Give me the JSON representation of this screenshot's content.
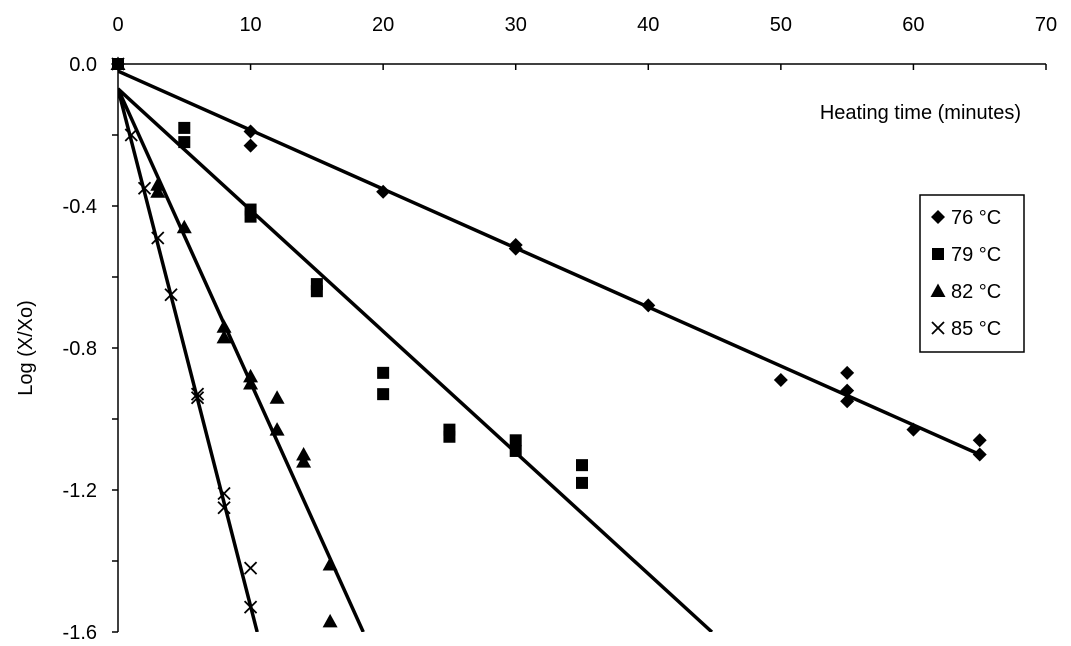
{
  "chart_data": {
    "type": "scatter",
    "xlabel": "Heating time (minutes)",
    "ylabel": "Log (X/Xo)",
    "xlim": [
      0,
      70
    ],
    "ylim": [
      -1.6,
      0.0
    ],
    "x_ticks": [
      "0",
      "10",
      "20",
      "30",
      "40",
      "50",
      "60",
      "70"
    ],
    "y_ticks": [
      "0.0",
      "-0.4",
      "-0.8",
      "-1.2",
      "-1.6"
    ],
    "x_axis_position": "top",
    "grid": false,
    "legend_position": "right",
    "series": [
      {
        "name": "76 °C",
        "marker": "diamond",
        "points": [
          [
            0,
            0.0
          ],
          [
            10,
            -0.19
          ],
          [
            10,
            -0.23
          ],
          [
            20,
            -0.36
          ],
          [
            30,
            -0.51
          ],
          [
            30,
            -0.52
          ],
          [
            40,
            -0.68
          ],
          [
            50,
            -0.89
          ],
          [
            55,
            -0.87
          ],
          [
            55,
            -0.92
          ],
          [
            55,
            -0.95
          ],
          [
            60,
            -1.03
          ],
          [
            65,
            -1.06
          ],
          [
            65,
            -1.1
          ]
        ],
        "fit": [
          [
            0,
            -0.02
          ],
          [
            65,
            -1.1
          ]
        ]
      },
      {
        "name": "79 °C",
        "marker": "square",
        "points": [
          [
            0,
            0.0
          ],
          [
            5,
            -0.18
          ],
          [
            5,
            -0.22
          ],
          [
            10,
            -0.41
          ],
          [
            10,
            -0.43
          ],
          [
            15,
            -0.62
          ],
          [
            15,
            -0.64
          ],
          [
            20,
            -0.87
          ],
          [
            20,
            -0.93
          ],
          [
            25,
            -1.03
          ],
          [
            25,
            -1.05
          ],
          [
            30,
            -1.06
          ],
          [
            30,
            -1.09
          ],
          [
            35,
            -1.13
          ],
          [
            35,
            -1.18
          ]
        ],
        "fit": [
          [
            0,
            -0.07
          ],
          [
            44.8,
            -1.6
          ]
        ]
      },
      {
        "name": "82 °C",
        "marker": "triangle",
        "points": [
          [
            0,
            0.0
          ],
          [
            3,
            -0.34
          ],
          [
            3,
            -0.36
          ],
          [
            5,
            -0.46
          ],
          [
            8,
            -0.74
          ],
          [
            8,
            -0.77
          ],
          [
            10,
            -0.88
          ],
          [
            10,
            -0.9
          ],
          [
            12,
            -0.94
          ],
          [
            12,
            -1.03
          ],
          [
            14,
            -1.1
          ],
          [
            14,
            -1.12
          ],
          [
            16,
            -1.41
          ],
          [
            16,
            -1.57
          ]
        ],
        "fit": [
          [
            0,
            -0.07
          ],
          [
            18.5,
            -1.6
          ]
        ]
      },
      {
        "name": "85 °C",
        "marker": "x",
        "points": [
          [
            0,
            0.0
          ],
          [
            1,
            -0.2
          ],
          [
            2,
            -0.35
          ],
          [
            3,
            -0.49
          ],
          [
            4,
            -0.65
          ],
          [
            6,
            -0.93
          ],
          [
            6,
            -0.94
          ],
          [
            8,
            -1.21
          ],
          [
            8,
            -1.25
          ],
          [
            10,
            -1.42
          ],
          [
            10,
            -1.53
          ]
        ],
        "fit": [
          [
            0,
            -0.07
          ],
          [
            10.5,
            -1.6
          ]
        ]
      }
    ]
  }
}
